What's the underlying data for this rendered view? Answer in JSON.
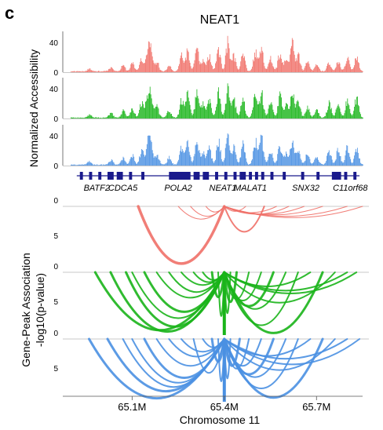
{
  "panel_letter": "c",
  "colors": {
    "red": "#F07068",
    "green": "#19B419",
    "blue": "#4A90E2",
    "gene_track": "#1A1A8C",
    "baseline": "#C8C8C8"
  },
  "chart_data": {
    "type": "area",
    "title": "NEAT1",
    "xlabel": "Chromosome 11",
    "xlim": [
      64.9,
      65.85
    ],
    "xticks": [
      {
        "label": "65.1M",
        "value": 65.1
      },
      {
        "label": "65.4M",
        "value": 65.4
      },
      {
        "label": "65.7M",
        "value": 65.7
      }
    ],
    "accessibility": {
      "ylabel": "Normalized Accessibility",
      "ylim": [
        0,
        55
      ],
      "yticks": [
        0,
        40
      ],
      "tracks": [
        {
          "color": "red",
          "peaks": [
            [
              64.96,
              4
            ],
            [
              65.03,
              6
            ],
            [
              65.07,
              10
            ],
            [
              65.1,
              14
            ],
            [
              65.13,
              20
            ],
            [
              65.15,
              34
            ],
            [
              65.16,
              30
            ],
            [
              65.18,
              16
            ],
            [
              65.22,
              10
            ],
            [
              65.26,
              28
            ],
            [
              65.28,
              34
            ],
            [
              65.31,
              36
            ],
            [
              65.33,
              18
            ],
            [
              65.35,
              26
            ],
            [
              65.38,
              38
            ],
            [
              65.41,
              48
            ],
            [
              65.43,
              26
            ],
            [
              65.46,
              30
            ],
            [
              65.5,
              34
            ],
            [
              65.52,
              38
            ],
            [
              65.55,
              22
            ],
            [
              65.58,
              30
            ],
            [
              65.6,
              18
            ],
            [
              65.62,
              50
            ],
            [
              65.64,
              26
            ],
            [
              65.67,
              16
            ],
            [
              65.7,
              12
            ],
            [
              65.74,
              14
            ],
            [
              65.77,
              16
            ],
            [
              65.8,
              22
            ],
            [
              65.83,
              26
            ]
          ]
        },
        {
          "color": "green",
          "peaks": [
            [
              64.96,
              5
            ],
            [
              65.03,
              8
            ],
            [
              65.07,
              12
            ],
            [
              65.1,
              16
            ],
            [
              65.13,
              24
            ],
            [
              65.15,
              36
            ],
            [
              65.16,
              32
            ],
            [
              65.18,
              18
            ],
            [
              65.22,
              12
            ],
            [
              65.26,
              30
            ],
            [
              65.28,
              38
            ],
            [
              65.31,
              40
            ],
            [
              65.33,
              22
            ],
            [
              65.35,
              30
            ],
            [
              65.38,
              42
            ],
            [
              65.41,
              46
            ],
            [
              65.43,
              30
            ],
            [
              65.46,
              34
            ],
            [
              65.5,
              40
            ],
            [
              65.52,
              42
            ],
            [
              65.55,
              26
            ],
            [
              65.58,
              36
            ],
            [
              65.6,
              22
            ],
            [
              65.62,
              44
            ],
            [
              65.64,
              28
            ],
            [
              65.67,
              18
            ],
            [
              65.7,
              14
            ],
            [
              65.74,
              26
            ],
            [
              65.77,
              28
            ],
            [
              65.8,
              30
            ],
            [
              65.83,
              34
            ]
          ]
        },
        {
          "color": "blue",
          "peaks": [
            [
              64.96,
              6
            ],
            [
              65.03,
              8
            ],
            [
              65.07,
              12
            ],
            [
              65.1,
              16
            ],
            [
              65.13,
              24
            ],
            [
              65.15,
              34
            ],
            [
              65.16,
              30
            ],
            [
              65.18,
              18
            ],
            [
              65.22,
              12
            ],
            [
              65.26,
              28
            ],
            [
              65.28,
              36
            ],
            [
              65.31,
              38
            ],
            [
              65.33,
              20
            ],
            [
              65.35,
              28
            ],
            [
              65.38,
              40
            ],
            [
              65.41,
              46
            ],
            [
              65.43,
              28
            ],
            [
              65.46,
              34
            ],
            [
              65.5,
              38
            ],
            [
              65.52,
              44
            ],
            [
              65.55,
              24
            ],
            [
              65.58,
              32
            ],
            [
              65.6,
              20
            ],
            [
              65.62,
              40
            ],
            [
              65.64,
              26
            ],
            [
              65.67,
              18
            ],
            [
              65.7,
              14
            ],
            [
              65.74,
              24
            ],
            [
              65.77,
              26
            ],
            [
              65.8,
              28
            ],
            [
              65.83,
              30
            ]
          ]
        }
      ]
    },
    "genes": [
      {
        "name": "BATF2",
        "value": 64.985
      },
      {
        "name": "CDCA5",
        "value": 65.07
      },
      {
        "name": "POLA2",
        "value": 65.25
      },
      {
        "name": "NEAT1",
        "value": 65.395
      },
      {
        "name": "MALAT1",
        "value": 65.485
      },
      {
        "name": "SNX32",
        "value": 65.665
      },
      {
        "name": "C11orf68",
        "value": 65.81
      }
    ],
    "gene_blocks": [
      [
        64.93,
        64.94
      ],
      [
        64.96,
        64.97
      ],
      [
        64.99,
        65.0
      ],
      [
        65.02,
        65.04
      ],
      [
        65.05,
        65.07
      ],
      [
        65.09,
        65.1
      ],
      [
        65.13,
        65.14
      ],
      [
        65.22,
        65.29
      ],
      [
        65.3,
        65.32
      ],
      [
        65.33,
        65.35
      ],
      [
        65.37,
        65.38
      ],
      [
        65.4,
        65.41
      ],
      [
        65.43,
        65.44
      ],
      [
        65.45,
        65.47
      ],
      [
        65.48,
        65.49
      ],
      [
        65.5,
        65.51
      ],
      [
        65.52,
        65.53
      ],
      [
        65.55,
        65.56
      ],
      [
        65.59,
        65.6
      ],
      [
        65.65,
        65.66
      ],
      [
        65.7,
        65.71
      ],
      [
        65.75,
        65.78
      ],
      [
        65.79,
        65.8
      ],
      [
        65.82,
        65.83
      ]
    ],
    "association": {
      "ylabel_line1": "Gene-Peak Association",
      "ylabel_line2": "-log10(p-value)",
      "ylim": [
        0,
        9
      ],
      "yticks": [
        0,
        5
      ],
      "anchor": 65.4,
      "groups": [
        {
          "color": "red",
          "arcs": [
            [
              65.12,
              8.1,
              3.5
            ],
            [
              65.25,
              1.8,
              1
            ],
            [
              65.29,
              1.4,
              1
            ],
            [
              65.34,
              0.8,
              1
            ],
            [
              65.47,
              0.7,
              1
            ],
            [
              65.53,
              3.6,
              2
            ],
            [
              65.57,
              0.9,
              1
            ],
            [
              65.61,
              1.1,
              1
            ],
            [
              65.66,
              1.1,
              1
            ],
            [
              65.72,
              1.2,
              1
            ],
            [
              65.8,
              1.4,
              1
            ],
            [
              65.85,
              1.6,
              1
            ]
          ]
        },
        {
          "color": "green",
          "arcs": [
            [
              64.98,
              8.2,
              3
            ],
            [
              65.03,
              8.4,
              3
            ],
            [
              65.08,
              7.7,
              3
            ],
            [
              65.1,
              6.5,
              2
            ],
            [
              65.14,
              5.6,
              3
            ],
            [
              65.18,
              3.6,
              2
            ],
            [
              65.22,
              2.8,
              2
            ],
            [
              65.26,
              1.8,
              2
            ],
            [
              65.3,
              1.4,
              2
            ],
            [
              65.33,
              1.1,
              2
            ],
            [
              65.36,
              3.5,
              3
            ],
            [
              65.38,
              6.2,
              2
            ],
            [
              65.42,
              5.8,
              2
            ],
            [
              65.44,
              4.2,
              3
            ],
            [
              65.48,
              3.8,
              2
            ],
            [
              65.52,
              4.0,
              2
            ],
            [
              65.56,
              4.8,
              3
            ],
            [
              65.6,
              5.2,
              2
            ],
            [
              65.64,
              7.5,
              2
            ],
            [
              65.68,
              2.0,
              2
            ],
            [
              65.72,
              8.6,
              3
            ],
            [
              65.76,
              4.3,
              2
            ],
            [
              65.8,
              2.6,
              2
            ],
            [
              65.83,
              3.0,
              2
            ]
          ]
        },
        {
          "color": "blue",
          "arcs": [
            [
              64.96,
              8.4,
              3
            ],
            [
              65.02,
              7.4,
              3
            ],
            [
              65.07,
              6.8,
              2
            ],
            [
              65.1,
              6.2,
              2
            ],
            [
              65.14,
              5.5,
              3
            ],
            [
              65.18,
              3.8,
              2
            ],
            [
              65.22,
              2.5,
              2
            ],
            [
              65.26,
              1.8,
              2
            ],
            [
              65.3,
              4.8,
              2
            ],
            [
              65.33,
              1.2,
              2
            ],
            [
              65.36,
              3.2,
              3
            ],
            [
              65.38,
              6.0,
              2
            ],
            [
              65.42,
              5.6,
              2
            ],
            [
              65.45,
              3.8,
              3
            ],
            [
              65.48,
              4.2,
              2
            ],
            [
              65.52,
              3.8,
              2
            ],
            [
              65.56,
              5.0,
              3
            ],
            [
              65.6,
              5.4,
              2
            ],
            [
              65.64,
              7.0,
              2
            ],
            [
              65.68,
              2.4,
              2
            ],
            [
              65.72,
              8.3,
              3
            ],
            [
              65.76,
              4.4,
              2
            ],
            [
              65.8,
              2.8,
              2
            ],
            [
              65.84,
              3.6,
              2
            ]
          ]
        }
      ]
    }
  }
}
